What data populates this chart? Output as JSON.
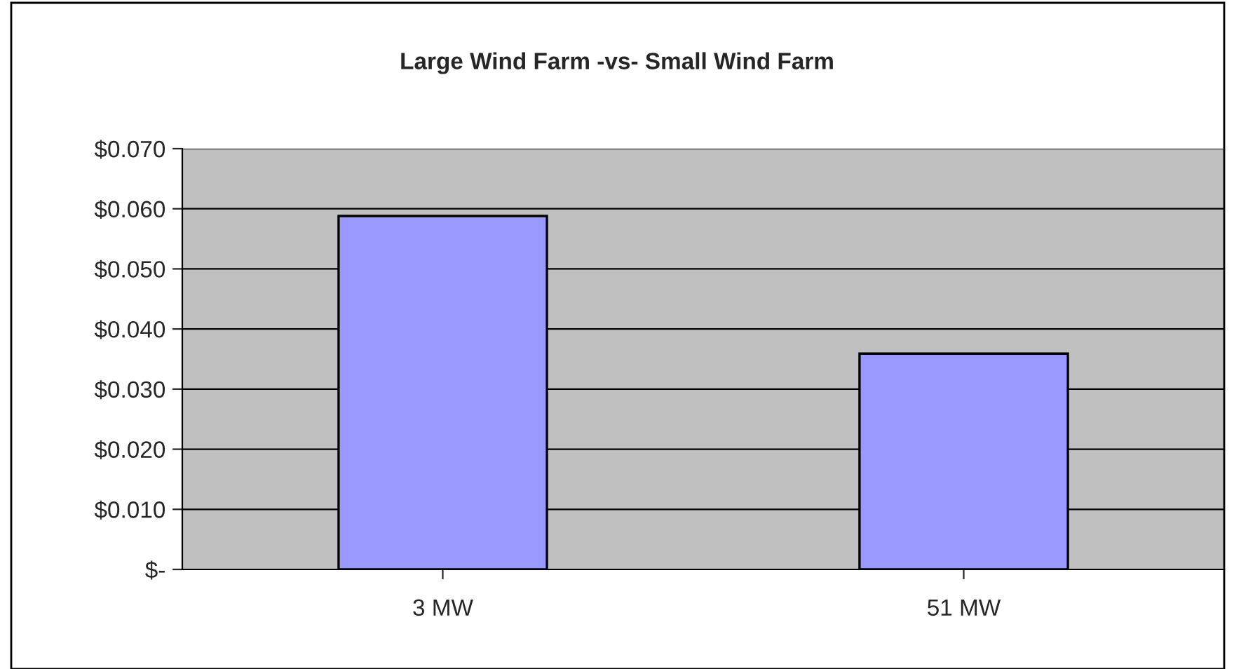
{
  "chart_data": {
    "type": "bar",
    "title": "Large Wind Farm -vs- Small Wind Farm",
    "categories": [
      "3 MW",
      "51 MW"
    ],
    "values": [
      0.0588,
      0.0359
    ],
    "color": "#9999ff",
    "ylim": [
      0,
      0.07
    ],
    "yticks": [
      {
        "value": 0,
        "label": "$-"
      },
      {
        "value": 0.01,
        "label": "$0.010"
      },
      {
        "value": 0.02,
        "label": "$0.020"
      },
      {
        "value": 0.03,
        "label": "$0.030"
      },
      {
        "value": 0.04,
        "label": "$0.040"
      },
      {
        "value": 0.05,
        "label": "$0.050"
      },
      {
        "value": 0.06,
        "label": "$0.060"
      },
      {
        "value": 0.07,
        "label": "$0.070"
      }
    ],
    "grid": "y",
    "legend": false
  }
}
